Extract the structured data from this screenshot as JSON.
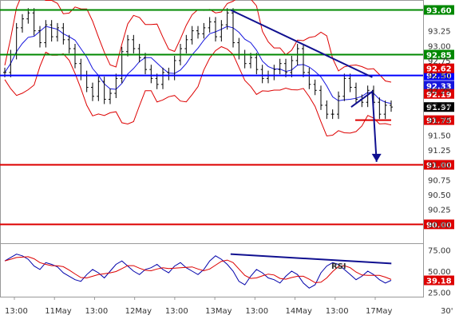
{
  "colors": {
    "background": "#ffffff",
    "price": "#000000",
    "bollinger": "#dd0000",
    "moving_average": "#1515dd",
    "resistance_green": "#008800",
    "support_red": "#dd0000",
    "pivot_blue": "#0000ff",
    "trendline": "#101090",
    "rsi_line": "#0000aa",
    "rsi_signal": "#dd0000",
    "current_price_tag": "#000000"
  },
  "chart_data": {
    "type": "line",
    "timeframe": "30'",
    "price_axis": {
      "ylim": [
        89.75,
        93.7
      ],
      "ticks": [
        "93.25",
        "93.00",
        "92.75",
        "92.50",
        "92.25",
        "92.00",
        "91.75",
        "91.50",
        "91.25",
        "91.00",
        "90.75",
        "90.50",
        "90.25",
        "90.00"
      ]
    },
    "x_axis": {
      "tick_labels": [
        "13:00",
        "11May",
        "13:00",
        "12May",
        "13:00",
        "13May",
        "13:00",
        "14May",
        "13:00",
        "17May"
      ]
    },
    "horizontal_levels": [
      {
        "value": 93.6,
        "label": "93.60",
        "color": "#008800"
      },
      {
        "value": 92.85,
        "label": "92.85",
        "color": "#008800"
      },
      {
        "value": 92.5,
        "label": "92.50",
        "color": "#0000ff"
      },
      {
        "value": 91.0,
        "label": "91.00",
        "color": "#dd0000"
      },
      {
        "value": 90.0,
        "label": "90.00",
        "color": "#dd0000"
      },
      {
        "value": 91.75,
        "label": "91.75",
        "color": "#dd0000"
      }
    ],
    "indicator_tags": [
      {
        "value": 92.62,
        "label": "92.62",
        "color": "#dd0000"
      },
      {
        "value": 92.33,
        "label": "92.33",
        "color": "#1515dd"
      },
      {
        "value": 92.19,
        "label": "92.19",
        "color": "#dd0000"
      }
    ],
    "current_price": {
      "value": 91.97,
      "label": "91.97"
    },
    "price_series": [
      92.55,
      92.85,
      93.3,
      93.45,
      93.55,
      93.25,
      93.05,
      93.35,
      93.15,
      93.3,
      93.1,
      92.95,
      92.7,
      92.5,
      92.3,
      92.15,
      92.4,
      92.1,
      92.2,
      92.45,
      92.9,
      93.1,
      92.95,
      92.8,
      92.6,
      92.45,
      92.35,
      92.55,
      92.5,
      92.75,
      92.95,
      93.1,
      93.25,
      93.2,
      93.3,
      93.4,
      93.15,
      93.35,
      93.55,
      93.05,
      92.85,
      92.7,
      92.8,
      92.6,
      92.45,
      92.5,
      92.6,
      92.7,
      92.55,
      92.75,
      92.95,
      92.55,
      92.35,
      92.25,
      92.0,
      91.85,
      91.85,
      92.15,
      92.45,
      92.3,
      92.1,
      92.05,
      92.25,
      92.05,
      91.85,
      92.0,
      91.97
    ],
    "trendline": {
      "label": "",
      "from": [
        0.545,
        93.6
      ],
      "to": [
        0.88,
        92.47
      ]
    },
    "projection": {
      "from": [
        0.83,
        91.97
      ],
      "mid": [
        0.88,
        92.23
      ],
      "to": [
        0.89,
        91.05
      ]
    },
    "rsi": {
      "label": "RSI",
      "ylim": [
        20,
        80
      ],
      "ticks": [
        "75.00",
        "50.00",
        "25.00"
      ],
      "tag": "39.18",
      "values": [
        62,
        66,
        70,
        68,
        64,
        56,
        52,
        60,
        58,
        55,
        48,
        44,
        40,
        38,
        46,
        52,
        48,
        42,
        50,
        58,
        62,
        56,
        50,
        46,
        52,
        54,
        58,
        52,
        48,
        56,
        60,
        54,
        50,
        46,
        52,
        62,
        68,
        64,
        58,
        50,
        38,
        34,
        44,
        52,
        48,
        42,
        40,
        36,
        44,
        50,
        46,
        36,
        30,
        34,
        48,
        56,
        60,
        58,
        52,
        46,
        40,
        44,
        50,
        46,
        40,
        36,
        39.18
      ],
      "trendline": {
        "from": [
          0.545,
          70
        ],
        "to": [
          0.925,
          59
        ]
      }
    }
  }
}
